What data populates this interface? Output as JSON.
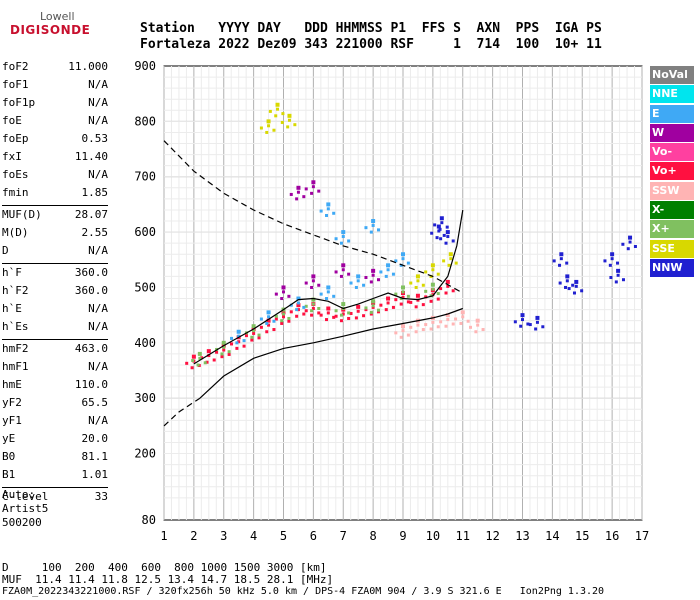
{
  "logo": {
    "top": "Lowell",
    "main": "DIGISONDE"
  },
  "header": {
    "line1": "Station   YYYY DAY   DDD HHMMSS P1  FFS S  AXN  PPS  IGA PS",
    "line2": "Fortaleza 2022 Dez09 343 221000 RSF     1  714  100  10+ 11"
  },
  "params": [
    {
      "group": [
        {
          "k": "foF2",
          "v": "11.000"
        },
        {
          "k": "foF1",
          "v": "N/A"
        },
        {
          "k": "foF1p",
          "v": "N/A"
        },
        {
          "k": "foE",
          "v": "N/A"
        },
        {
          "k": "foEp",
          "v": "0.53"
        },
        {
          "k": "fxI",
          "v": "11.40"
        },
        {
          "k": "foEs",
          "v": "N/A"
        },
        {
          "k": "fmin",
          "v": "1.85"
        }
      ]
    },
    {
      "group": [
        {
          "k": "MUF(D)",
          "v": "28.07"
        },
        {
          "k": "M(D)",
          "v": "2.55"
        },
        {
          "k": "D",
          "v": "N/A"
        }
      ]
    },
    {
      "group": [
        {
          "k": "h`F",
          "v": "360.0"
        },
        {
          "k": "h`F2",
          "v": "360.0"
        },
        {
          "k": "h`E",
          "v": "N/A"
        },
        {
          "k": "h`Es",
          "v": "N/A"
        }
      ]
    },
    {
      "group": [
        {
          "k": "hmF2",
          "v": "463.0"
        },
        {
          "k": "hmF1",
          "v": "N/A"
        },
        {
          "k": "hmE",
          "v": "110.0"
        },
        {
          "k": "yF2",
          "v": "65.5"
        },
        {
          "k": "yF1",
          "v": "N/A"
        },
        {
          "k": "yE",
          "v": "20.0"
        },
        {
          "k": "B0",
          "v": "81.1"
        },
        {
          "k": "B1",
          "v": "1.01"
        }
      ]
    },
    {
      "group": [
        {
          "k": "C-level",
          "v": "33"
        }
      ]
    }
  ],
  "auto": {
    "line1": "Auto:",
    "line2": "Artist5",
    "line3": "500200"
  },
  "footer": {
    "d_row": "D     100  200  400  600  800 1000 1500 3000 [km]",
    "muf_row": "MUF  11.4 11.4 11.8 12.5 13.4 14.7 18.5 28.1 [MHz]",
    "file_row": "FZA0M_2022343221000.RSF / 320fx256h 50 kHz 5.0 km / DPS-4 FZA0M 904 / 3.9 S 321.6 E   Ion2Png 1.3.20"
  },
  "legend": [
    {
      "label": "NoVal",
      "color": "#808080"
    },
    {
      "label": "NNE",
      "color": "#00e5ee"
    },
    {
      "label": "E",
      "color": "#3fa9f5"
    },
    {
      "label": "W",
      "color": "#a000a0"
    },
    {
      "label": "Vo-",
      "color": "#ff40a0"
    },
    {
      "label": "Vo+",
      "color": "#ff1040"
    },
    {
      "label": "SSW",
      "color": "#ffb4b4"
    },
    {
      "label": "X-",
      "color": "#008000"
    },
    {
      "label": "X+",
      "color": "#80c060"
    },
    {
      "label": "SSE",
      "color": "#d8d800"
    },
    {
      "label": "NNW",
      "color": "#2020d0"
    }
  ],
  "chart_data": {
    "type": "scatter",
    "xlim": [
      1,
      17
    ],
    "ylim": [
      80,
      900
    ],
    "x_ticks": [
      "1",
      "2",
      "3",
      "4",
      "5",
      "6",
      "7",
      "8",
      "9",
      "10",
      "11",
      "12",
      "13",
      "14",
      "15",
      "16",
      "17"
    ],
    "y_ticks": [
      "80",
      "200",
      "300",
      "400",
      "500",
      "600",
      "700",
      "800",
      "900"
    ],
    "grid": true,
    "legend_position": "right",
    "series": [
      {
        "name": "Vo+",
        "color": "#ff1040",
        "points": [
          [
            2.0,
            375
          ],
          [
            2.5,
            385
          ],
          [
            3.0,
            395
          ],
          [
            3.5,
            410
          ],
          [
            4.0,
            425
          ],
          [
            4.5,
            440
          ],
          [
            5.0,
            455
          ],
          [
            5.5,
            468
          ],
          [
            6.0,
            470
          ],
          [
            6.5,
            462
          ],
          [
            7.0,
            460
          ],
          [
            7.5,
            465
          ],
          [
            8.0,
            472
          ],
          [
            8.5,
            480
          ],
          [
            9.0,
            490
          ],
          [
            9.5,
            485
          ],
          [
            10.0,
            495
          ],
          [
            10.5,
            510
          ]
        ]
      },
      {
        "name": "X+",
        "color": "#80c060",
        "points": [
          [
            2.2,
            380
          ],
          [
            3.0,
            400
          ],
          [
            4.0,
            430
          ],
          [
            5.0,
            460
          ],
          [
            6.0,
            478
          ],
          [
            7.0,
            470
          ],
          [
            8.0,
            475
          ],
          [
            9.0,
            500
          ],
          [
            10.0,
            505
          ]
        ]
      },
      {
        "name": "E",
        "color": "#3fa9f5",
        "points": [
          [
            3.5,
            420
          ],
          [
            4.5,
            455
          ],
          [
            5.5,
            480
          ],
          [
            6.5,
            500
          ],
          [
            7.5,
            520
          ],
          [
            8.5,
            540
          ],
          [
            9.0,
            560
          ],
          [
            7.0,
            600
          ],
          [
            8.0,
            620
          ],
          [
            6.5,
            650
          ]
        ]
      },
      {
        "name": "SSW",
        "color": "#ffb4b4",
        "points": [
          [
            9.5,
            440
          ],
          [
            10.0,
            445
          ],
          [
            10.5,
            450
          ],
          [
            11.0,
            455
          ],
          [
            11.5,
            440
          ],
          [
            9.0,
            430
          ]
        ]
      },
      {
        "name": "NNW",
        "color": "#2020d0",
        "points": [
          [
            10.2,
            610
          ],
          [
            10.3,
            625
          ],
          [
            10.5,
            600
          ],
          [
            13.0,
            450
          ],
          [
            13.5,
            445
          ],
          [
            14.3,
            560
          ],
          [
            14.5,
            520
          ],
          [
            14.8,
            510
          ],
          [
            16.0,
            560
          ],
          [
            16.2,
            530
          ],
          [
            16.6,
            590
          ]
        ]
      },
      {
        "name": "SSE",
        "color": "#d8d800",
        "points": [
          [
            4.5,
            800
          ],
          [
            4.8,
            830
          ],
          [
            5.2,
            810
          ],
          [
            9.5,
            520
          ],
          [
            10.0,
            540
          ],
          [
            10.6,
            560
          ]
        ]
      },
      {
        "name": "W",
        "color": "#a000a0",
        "points": [
          [
            5.5,
            680
          ],
          [
            6.0,
            690
          ],
          [
            5.0,
            500
          ],
          [
            6.0,
            520
          ],
          [
            7.0,
            540
          ],
          [
            8.0,
            530
          ]
        ]
      }
    ],
    "dashed_lines": [
      {
        "points": [
          [
            1.0,
            765
          ],
          [
            2.0,
            710
          ],
          [
            3.0,
            670
          ],
          [
            4.0,
            640
          ],
          [
            5.0,
            615
          ],
          [
            6.0,
            595
          ],
          [
            7.0,
            575
          ],
          [
            8.0,
            560
          ],
          [
            9.0,
            540
          ],
          [
            10.0,
            520
          ],
          [
            11.0,
            490
          ]
        ]
      },
      {
        "points": [
          [
            1.0,
            250
          ],
          [
            1.5,
            275
          ],
          [
            2.2,
            300
          ]
        ]
      }
    ],
    "solid_lines": [
      {
        "points": [
          [
            2.2,
            300
          ],
          [
            3.0,
            340
          ],
          [
            4.0,
            372
          ],
          [
            5.0,
            390
          ],
          [
            6.0,
            400
          ],
          [
            7.0,
            412
          ],
          [
            8.0,
            425
          ],
          [
            9.0,
            435
          ],
          [
            10.0,
            445
          ],
          [
            10.5,
            452
          ],
          [
            11.0,
            462
          ]
        ]
      },
      {
        "points": [
          [
            2.0,
            362
          ],
          [
            3.0,
            395
          ],
          [
            4.0,
            425
          ],
          [
            5.0,
            460
          ],
          [
            5.5,
            478
          ],
          [
            6.0,
            480
          ],
          [
            6.5,
            475
          ],
          [
            7.0,
            462
          ],
          [
            7.5,
            470
          ],
          [
            8.0,
            480
          ],
          [
            8.5,
            490
          ],
          [
            9.0,
            480
          ],
          [
            9.5,
            478
          ],
          [
            10.0,
            485
          ],
          [
            10.5,
            520
          ],
          [
            10.8,
            575
          ],
          [
            11.0,
            640
          ]
        ]
      }
    ]
  }
}
